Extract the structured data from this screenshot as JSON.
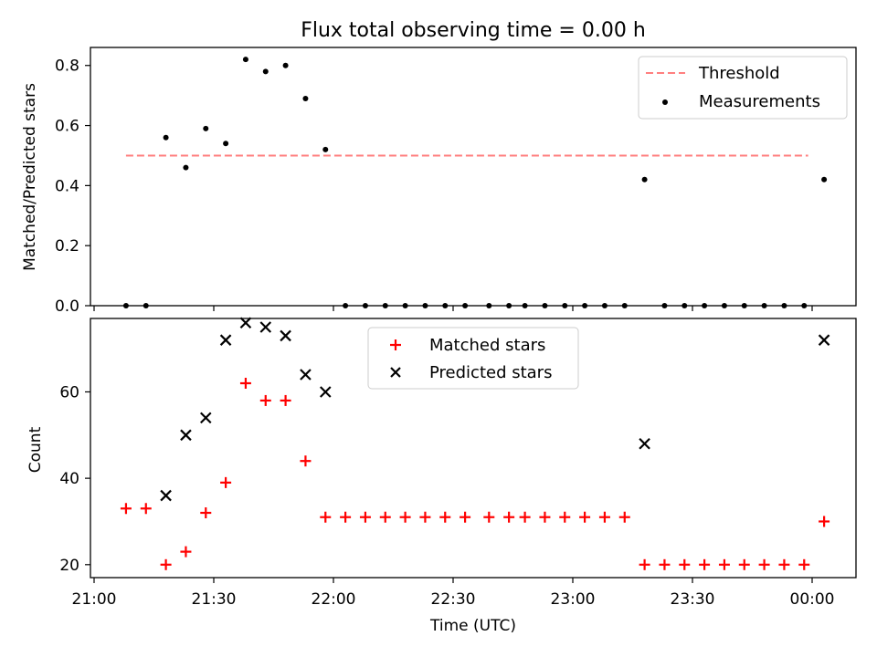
{
  "chart_data": [
    {
      "type": "scatter",
      "title": "Flux total observing time = 0.00 h",
      "xlabel": "",
      "ylabel": "Matched/Predicted stars",
      "ylim": [
        0,
        0.86
      ],
      "yticks": [
        "0.0",
        "0.2",
        "0.4",
        "0.6",
        "0.8"
      ],
      "ytick_values": [
        0,
        0.2,
        0.4,
        0.6,
        0.8
      ],
      "legend_position": "top-right",
      "colors": {
        "threshold": "#ff7f7f",
        "measurements": "#000000"
      },
      "threshold": {
        "name": "Threshold",
        "value": 0.5,
        "x_start": "21:08",
        "x_end": "23:59"
      },
      "series": [
        {
          "name": "Measurements",
          "x": [
            "21:08",
            "21:13",
            "21:18",
            "21:23",
            "21:28",
            "21:33",
            "21:38",
            "21:43",
            "21:48",
            "21:53",
            "21:58",
            "22:03",
            "22:08",
            "22:13",
            "22:18",
            "22:23",
            "22:28",
            "22:33",
            "22:39",
            "22:44",
            "22:48",
            "22:53",
            "22:58",
            "23:03",
            "23:08",
            "23:13",
            "23:18",
            "23:23",
            "23:28",
            "23:33",
            "23:38",
            "23:43",
            "23:48",
            "23:53",
            "23:58",
            "00:03"
          ],
          "y": [
            0,
            0,
            0.56,
            0.46,
            0.59,
            0.54,
            0.82,
            0.78,
            0.8,
            0.69,
            0.52,
            0,
            0,
            0,
            0,
            0,
            0,
            0,
            0,
            0,
            0,
            0,
            0,
            0,
            0,
            0,
            0.42,
            0,
            0,
            0,
            0,
            0,
            0,
            0,
            0,
            0.42
          ]
        }
      ]
    },
    {
      "type": "scatter",
      "xlabel": "Time (UTC)",
      "ylabel": "Count",
      "ylim": [
        17,
        77
      ],
      "xlim": [
        "21:00",
        "00:10"
      ],
      "yticks": [
        "20",
        "40",
        "60"
      ],
      "ytick_values": [
        20,
        40,
        60
      ],
      "xticks": [
        "21:00",
        "21:30",
        "22:00",
        "22:30",
        "23:00",
        "23:30",
        "00:00"
      ],
      "legend_position": "top-center",
      "colors": {
        "matched": "#ff0000",
        "predicted": "#000000"
      },
      "series": [
        {
          "name": "Matched stars",
          "marker": "+",
          "x": [
            "21:08",
            "21:13",
            "21:18",
            "21:23",
            "21:28",
            "21:33",
            "21:38",
            "21:43",
            "21:48",
            "21:53",
            "21:58",
            "22:03",
            "22:08",
            "22:13",
            "22:18",
            "22:23",
            "22:28",
            "22:33",
            "22:39",
            "22:44",
            "22:48",
            "22:53",
            "22:58",
            "23:03",
            "23:08",
            "23:13",
            "23:18",
            "23:23",
            "23:28",
            "23:33",
            "23:38",
            "23:43",
            "23:48",
            "23:53",
            "23:58",
            "00:03"
          ],
          "y": [
            33,
            33,
            20,
            23,
            32,
            39,
            62,
            58,
            58,
            44,
            31,
            31,
            31,
            31,
            31,
            31,
            31,
            31,
            31,
            31,
            31,
            31,
            31,
            31,
            31,
            31,
            20,
            20,
            20,
            20,
            20,
            20,
            20,
            20,
            20,
            30
          ]
        },
        {
          "name": "Predicted stars",
          "marker": "x",
          "x": [
            "21:18",
            "21:23",
            "21:28",
            "21:33",
            "21:38",
            "21:43",
            "21:48",
            "21:53",
            "21:58",
            "23:18",
            "00:03"
          ],
          "y": [
            36,
            50,
            54,
            72,
            76,
            75,
            73,
            64,
            60,
            48,
            72
          ]
        }
      ]
    }
  ]
}
